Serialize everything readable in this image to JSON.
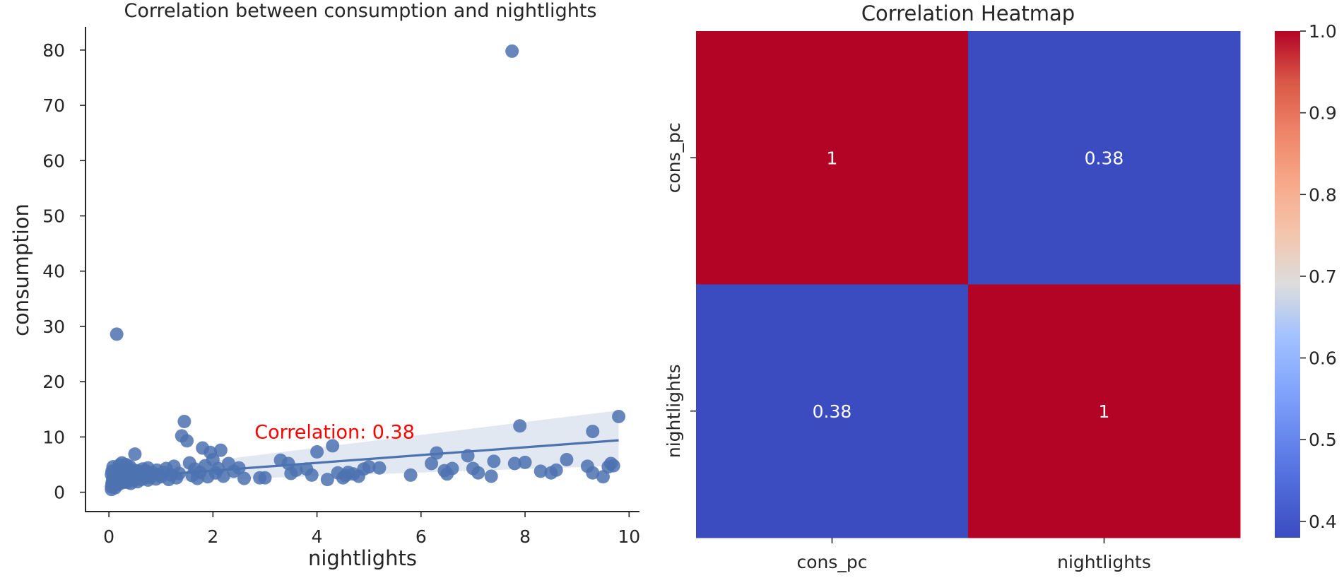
{
  "chart_data": [
    {
      "type": "scatter",
      "title": "Correlation between consumption and nightlights",
      "xlabel": "nightlights",
      "ylabel": "consumption",
      "xlim": [
        -0.45,
        10.2
      ],
      "ylim": [
        -3.5,
        84.2
      ],
      "xticks": [
        "0",
        "2",
        "4",
        "6",
        "8",
        "10"
      ],
      "yticks": [
        "0",
        "10",
        "20",
        "30",
        "40",
        "50",
        "60",
        "70",
        "80"
      ],
      "grid": false,
      "annotation": {
        "text": "Correlation: 0.38",
        "x": 2.8,
        "y": 9.7,
        "color": "#ff0000"
      },
      "regression": {
        "x": [
          0,
          9.8
        ],
        "y": [
          2.5,
          9.4
        ],
        "ci_lower": [
          1.6,
          4.8
        ],
        "ci_upper": [
          3.4,
          14.8
        ]
      },
      "point_color": "#4c72b0",
      "points": [
        [
          0.05,
          0.5
        ],
        [
          0.05,
          1.0
        ],
        [
          0.06,
          1.6
        ],
        [
          0.07,
          2.1
        ],
        [
          0.08,
          2.7
        ],
        [
          0.05,
          3.2
        ],
        [
          0.06,
          3.8
        ],
        [
          0.08,
          4.6
        ],
        [
          0.09,
          1.2
        ],
        [
          0.1,
          2.9
        ],
        [
          0.12,
          3.5
        ],
        [
          0.12,
          0.8
        ],
        [
          0.14,
          1.9
        ],
        [
          0.15,
          2.4
        ],
        [
          0.15,
          4.1
        ],
        [
          0.17,
          3.0
        ],
        [
          0.18,
          1.4
        ],
        [
          0.2,
          2.2
        ],
        [
          0.2,
          4.9
        ],
        [
          0.22,
          3.6
        ],
        [
          0.23,
          2.7
        ],
        [
          0.25,
          1.7
        ],
        [
          0.25,
          5.3
        ],
        [
          0.27,
          3.1
        ],
        [
          0.28,
          4.4
        ],
        [
          0.3,
          2.0
        ],
        [
          0.3,
          3.8
        ],
        [
          0.32,
          2.6
        ],
        [
          0.33,
          5.0
        ],
        [
          0.35,
          1.8
        ],
        [
          0.35,
          3.4
        ],
        [
          0.37,
          4.2
        ],
        [
          0.38,
          2.3
        ],
        [
          0.4,
          3.0
        ],
        [
          0.4,
          4.7
        ],
        [
          0.42,
          1.6
        ],
        [
          0.43,
          3.7
        ],
        [
          0.45,
          2.8
        ],
        [
          0.47,
          4.0
        ],
        [
          0.48,
          2.1
        ],
        [
          0.5,
          3.3
        ],
        [
          0.5,
          6.9
        ],
        [
          0.52,
          2.5
        ],
        [
          0.55,
          3.9
        ],
        [
          0.55,
          1.9
        ],
        [
          0.58,
          2.9
        ],
        [
          0.6,
          3.6
        ],
        [
          0.62,
          2.3
        ],
        [
          0.65,
          4.2
        ],
        [
          0.68,
          3.0
        ],
        [
          0.7,
          2.6
        ],
        [
          0.72,
          3.8
        ],
        [
          0.75,
          2.2
        ],
        [
          0.75,
          4.4
        ],
        [
          0.78,
          3.1
        ],
        [
          0.8,
          2.7
        ],
        [
          0.85,
          3.5
        ],
        [
          0.9,
          2.4
        ],
        [
          0.92,
          4.0
        ],
        [
          0.95,
          3.2
        ],
        [
          0.15,
          28.6
        ],
        [
          1.0,
          2.8
        ],
        [
          1.05,
          3.6
        ],
        [
          1.1,
          4.3
        ],
        [
          1.15,
          2.3
        ],
        [
          1.2,
          3.1
        ],
        [
          1.25,
          4.7
        ],
        [
          1.3,
          2.6
        ],
        [
          1.35,
          3.4
        ],
        [
          1.4,
          10.2
        ],
        [
          1.45,
          12.8
        ],
        [
          1.5,
          9.3
        ],
        [
          1.55,
          5.3
        ],
        [
          1.6,
          3.0
        ],
        [
          1.65,
          4.2
        ],
        [
          1.7,
          2.5
        ],
        [
          1.75,
          3.6
        ],
        [
          1.8,
          8.0
        ],
        [
          1.85,
          4.8
        ],
        [
          1.9,
          2.8
        ],
        [
          1.95,
          7.2
        ],
        [
          2.0,
          5.9
        ],
        [
          2.05,
          3.5
        ],
        [
          2.1,
          4.3
        ],
        [
          2.15,
          7.6
        ],
        [
          2.2,
          2.9
        ],
        [
          2.3,
          5.2
        ],
        [
          2.4,
          3.8
        ],
        [
          2.5,
          4.4
        ],
        [
          2.6,
          2.5
        ],
        [
          2.9,
          2.6
        ],
        [
          3.0,
          2.6
        ],
        [
          3.3,
          5.8
        ],
        [
          3.45,
          5.2
        ],
        [
          3.5,
          3.4
        ],
        [
          3.6,
          4.0
        ],
        [
          3.8,
          4.2
        ],
        [
          3.9,
          3.1
        ],
        [
          4.0,
          7.3
        ],
        [
          4.2,
          2.3
        ],
        [
          4.3,
          8.4
        ],
        [
          4.4,
          3.5
        ],
        [
          4.5,
          2.6
        ],
        [
          4.55,
          3.0
        ],
        [
          4.6,
          3.6
        ],
        [
          4.7,
          3.3
        ],
        [
          4.8,
          2.9
        ],
        [
          4.9,
          4.2
        ],
        [
          5.0,
          4.6
        ],
        [
          5.2,
          4.4
        ],
        [
          5.8,
          3.1
        ],
        [
          6.2,
          5.2
        ],
        [
          6.3,
          7.1
        ],
        [
          6.45,
          3.9
        ],
        [
          6.5,
          3.3
        ],
        [
          6.6,
          4.3
        ],
        [
          6.9,
          6.6
        ],
        [
          7.0,
          4.3
        ],
        [
          7.1,
          3.5
        ],
        [
          7.35,
          2.9
        ],
        [
          7.4,
          5.6
        ],
        [
          7.8,
          5.2
        ],
        [
          7.75,
          79.8
        ],
        [
          7.9,
          12.0
        ],
        [
          8.0,
          5.4
        ],
        [
          8.3,
          3.8
        ],
        [
          8.5,
          3.5
        ],
        [
          8.6,
          4.0
        ],
        [
          8.8,
          5.9
        ],
        [
          9.2,
          4.7
        ],
        [
          9.3,
          3.5
        ],
        [
          9.3,
          11.0
        ],
        [
          9.5,
          2.8
        ],
        [
          9.6,
          4.6
        ],
        [
          9.65,
          5.2
        ],
        [
          9.7,
          4.8
        ],
        [
          9.8,
          13.7
        ]
      ]
    },
    {
      "type": "heatmap",
      "title": "Correlation Heatmap",
      "rows": [
        "cons_pc",
        "nightlights"
      ],
      "columns": [
        "cons_pc",
        "nightlights"
      ],
      "values": [
        [
          1,
          0.38
        ],
        [
          0.38,
          1
        ]
      ],
      "annotations": [
        [
          "1",
          "0.38"
        ],
        [
          "0.38",
          "1"
        ]
      ],
      "colormap": "coolwarm",
      "vmin": 0.38,
      "vmax": 1.0,
      "colorbar_ticks": [
        "0.4",
        "0.5",
        "0.6",
        "0.7",
        "0.8",
        "0.9",
        "1.0"
      ],
      "colors": {
        "high": "#b40426",
        "low": "#3b4cc0"
      }
    }
  ]
}
